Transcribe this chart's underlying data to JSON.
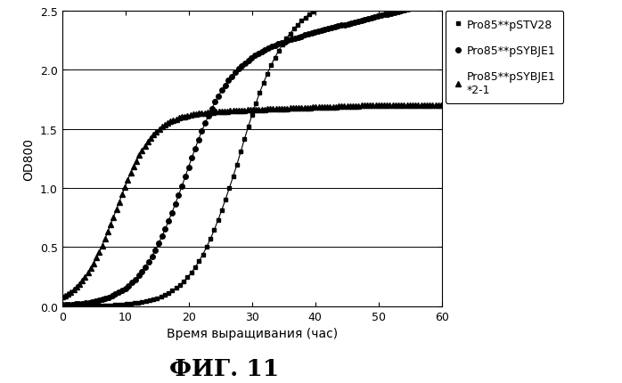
{
  "title": "ФИГ. 11",
  "xlabel": "Время выращивания (час)",
  "ylabel": "OD800",
  "xlim": [
    0,
    60
  ],
  "ylim": [
    0,
    2.5
  ],
  "yticks": [
    0,
    0.5,
    1.0,
    1.5,
    2.0,
    2.5
  ],
  "xticks": [
    0,
    10,
    20,
    30,
    40,
    50,
    60
  ],
  "background_color": "#ffffff",
  "curve1": {
    "label": "Pro85**pSTV28",
    "marker": "s",
    "lag": 27.5,
    "rate": 0.28,
    "max_val": 2.35,
    "post_lag_slope": 0.018
  },
  "curve2": {
    "label": "Pro85**pSYBJE1",
    "marker": "o",
    "lag": 19.0,
    "rate": 0.28,
    "max_val": 2.05,
    "post_lag_slope": 0.013
  },
  "curve3": {
    "label": "Pro85**pSYBJE1\n*2-1",
    "marker": "^",
    "lag": 8.5,
    "rate": 0.35,
    "max_val": 1.62,
    "post_lag_slope": 0.002
  }
}
